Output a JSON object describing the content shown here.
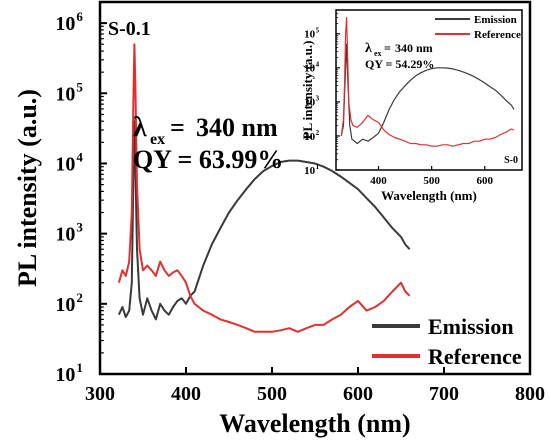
{
  "chart_data": [
    {
      "panel": "main",
      "type": "line",
      "sample_label": "S-0.1",
      "annotation_ex": "340 nm",
      "annotation_qy": "QY = 63.99%",
      "xlabel": "Wavelength (nm)",
      "ylabel": "PL intensity (a.u.)",
      "xlim": [
        300,
        800
      ],
      "ylim": [
        10,
        2000000
      ],
      "yscale": "log",
      "x_ticks": [
        300,
        400,
        500,
        600,
        700,
        800
      ],
      "y_ticks": [
        {
          "value": 10,
          "label": "10",
          "exp": "1"
        },
        {
          "value": 100,
          "label": "10",
          "exp": "2"
        },
        {
          "value": 1000,
          "label": "10",
          "exp": "3"
        },
        {
          "value": 10000,
          "label": "10",
          "exp": "4"
        },
        {
          "value": 100000,
          "label": "10",
          "exp": "5"
        },
        {
          "value": 1000000,
          "label": "10",
          "exp": "6"
        }
      ],
      "legend_position": "bottom-right",
      "series": [
        {
          "name": "Emission",
          "color": "#3a3a3a",
          "x": [
            322,
            326,
            330,
            334,
            337,
            339,
            340,
            341,
            343,
            346,
            350,
            355,
            360,
            365,
            370,
            375,
            380,
            385,
            390,
            395,
            400,
            405,
            410,
            420,
            430,
            440,
            450,
            460,
            470,
            480,
            490,
            500,
            510,
            520,
            530,
            540,
            550,
            560,
            570,
            580,
            590,
            600,
            610,
            620,
            630,
            640,
            650,
            655,
            660
          ],
          "y": [
            70,
            90,
            65,
            80,
            200,
            8000,
            40000,
            10000,
            600,
            120,
            70,
            120,
            80,
            60,
            100,
            80,
            70,
            90,
            110,
            120,
            100,
            130,
            150,
            350,
            700,
            1200,
            2000,
            3000,
            4300,
            6000,
            7800,
            9200,
            10500,
            11000,
            11000,
            10500,
            10000,
            9000,
            7800,
            6500,
            5300,
            4300,
            3200,
            2400,
            1700,
            1200,
            900,
            700,
            600
          ]
        },
        {
          "name": "Reference",
          "color": "#e03030",
          "x": [
            322,
            326,
            330,
            334,
            337,
            339,
            340,
            341,
            343,
            346,
            350,
            355,
            360,
            365,
            370,
            375,
            380,
            385,
            390,
            395,
            400,
            405,
            410,
            420,
            430,
            440,
            450,
            460,
            470,
            480,
            490,
            500,
            510,
            520,
            530,
            540,
            550,
            560,
            570,
            580,
            590,
            600,
            610,
            620,
            630,
            640,
            650,
            655,
            660
          ],
          "y": [
            200,
            300,
            250,
            400,
            2000,
            100000,
            500000,
            150000,
            5000,
            600,
            300,
            350,
            300,
            250,
            400,
            300,
            250,
            280,
            300,
            250,
            200,
            130,
            100,
            80,
            70,
            60,
            55,
            50,
            45,
            40,
            40,
            40,
            42,
            45,
            40,
            45,
            50,
            50,
            60,
            70,
            90,
            110,
            80,
            90,
            110,
            150,
            200,
            150,
            130
          ]
        }
      ]
    },
    {
      "panel": "inset",
      "type": "line",
      "sample_label": "S-0",
      "annotation_ex": "340 nm",
      "annotation_qy": "QY = 54.29%",
      "xlabel": "Wavelength (nm)",
      "ylabel": "PL intensity (a.u.)",
      "xlim": [
        320,
        670
      ],
      "ylim": [
        10,
        500000
      ],
      "yscale": "log",
      "x_ticks": [
        400,
        500,
        600
      ],
      "y_ticks": [
        {
          "value": 10,
          "label": "10",
          "exp": "1"
        },
        {
          "value": 100,
          "label": "10",
          "exp": "2"
        },
        {
          "value": 1000,
          "label": "10",
          "exp": "3"
        },
        {
          "value": 10000,
          "label": "10",
          "exp": "4"
        },
        {
          "value": 100000,
          "label": "10",
          "exp": "5"
        }
      ],
      "legend_position": "top-right",
      "series": [
        {
          "name": "Emission",
          "color": "#3a3a3a",
          "x": [
            330,
            334,
            338,
            340,
            342,
            346,
            350,
            360,
            370,
            380,
            390,
            400,
            410,
            420,
            430,
            440,
            450,
            460,
            470,
            480,
            490,
            500,
            510,
            520,
            530,
            540,
            550,
            560,
            570,
            580,
            590,
            600,
            610,
            620,
            630,
            640,
            650,
            655
          ],
          "y": [
            100,
            200,
            10000,
            50000,
            5000,
            200,
            80,
            60,
            80,
            70,
            90,
            120,
            250,
            600,
            1200,
            2000,
            3000,
            4300,
            5800,
            7200,
            8500,
            9500,
            10000,
            10000,
            9800,
            9300,
            8500,
            7500,
            6500,
            5500,
            4500,
            3600,
            2800,
            2200,
            1600,
            1100,
            800,
            600
          ]
        },
        {
          "name": "Reference",
          "color": "#e03030",
          "x": [
            330,
            334,
            336,
            338,
            340,
            342,
            344,
            348,
            352,
            360,
            370,
            380,
            390,
            400,
            410,
            420,
            430,
            440,
            450,
            460,
            470,
            480,
            490,
            500,
            510,
            520,
            530,
            540,
            550,
            560,
            570,
            580,
            590,
            600,
            610,
            620,
            630,
            640,
            650,
            655
          ],
          "y": [
            100,
            300,
            3000,
            100000,
            300000,
            20000,
            1000,
            300,
            200,
            180,
            250,
            400,
            300,
            250,
            150,
            110,
            90,
            80,
            70,
            60,
            60,
            55,
            55,
            50,
            50,
            55,
            55,
            50,
            55,
            60,
            60,
            70,
            70,
            80,
            80,
            90,
            110,
            130,
            160,
            150
          ]
        }
      ]
    }
  ]
}
